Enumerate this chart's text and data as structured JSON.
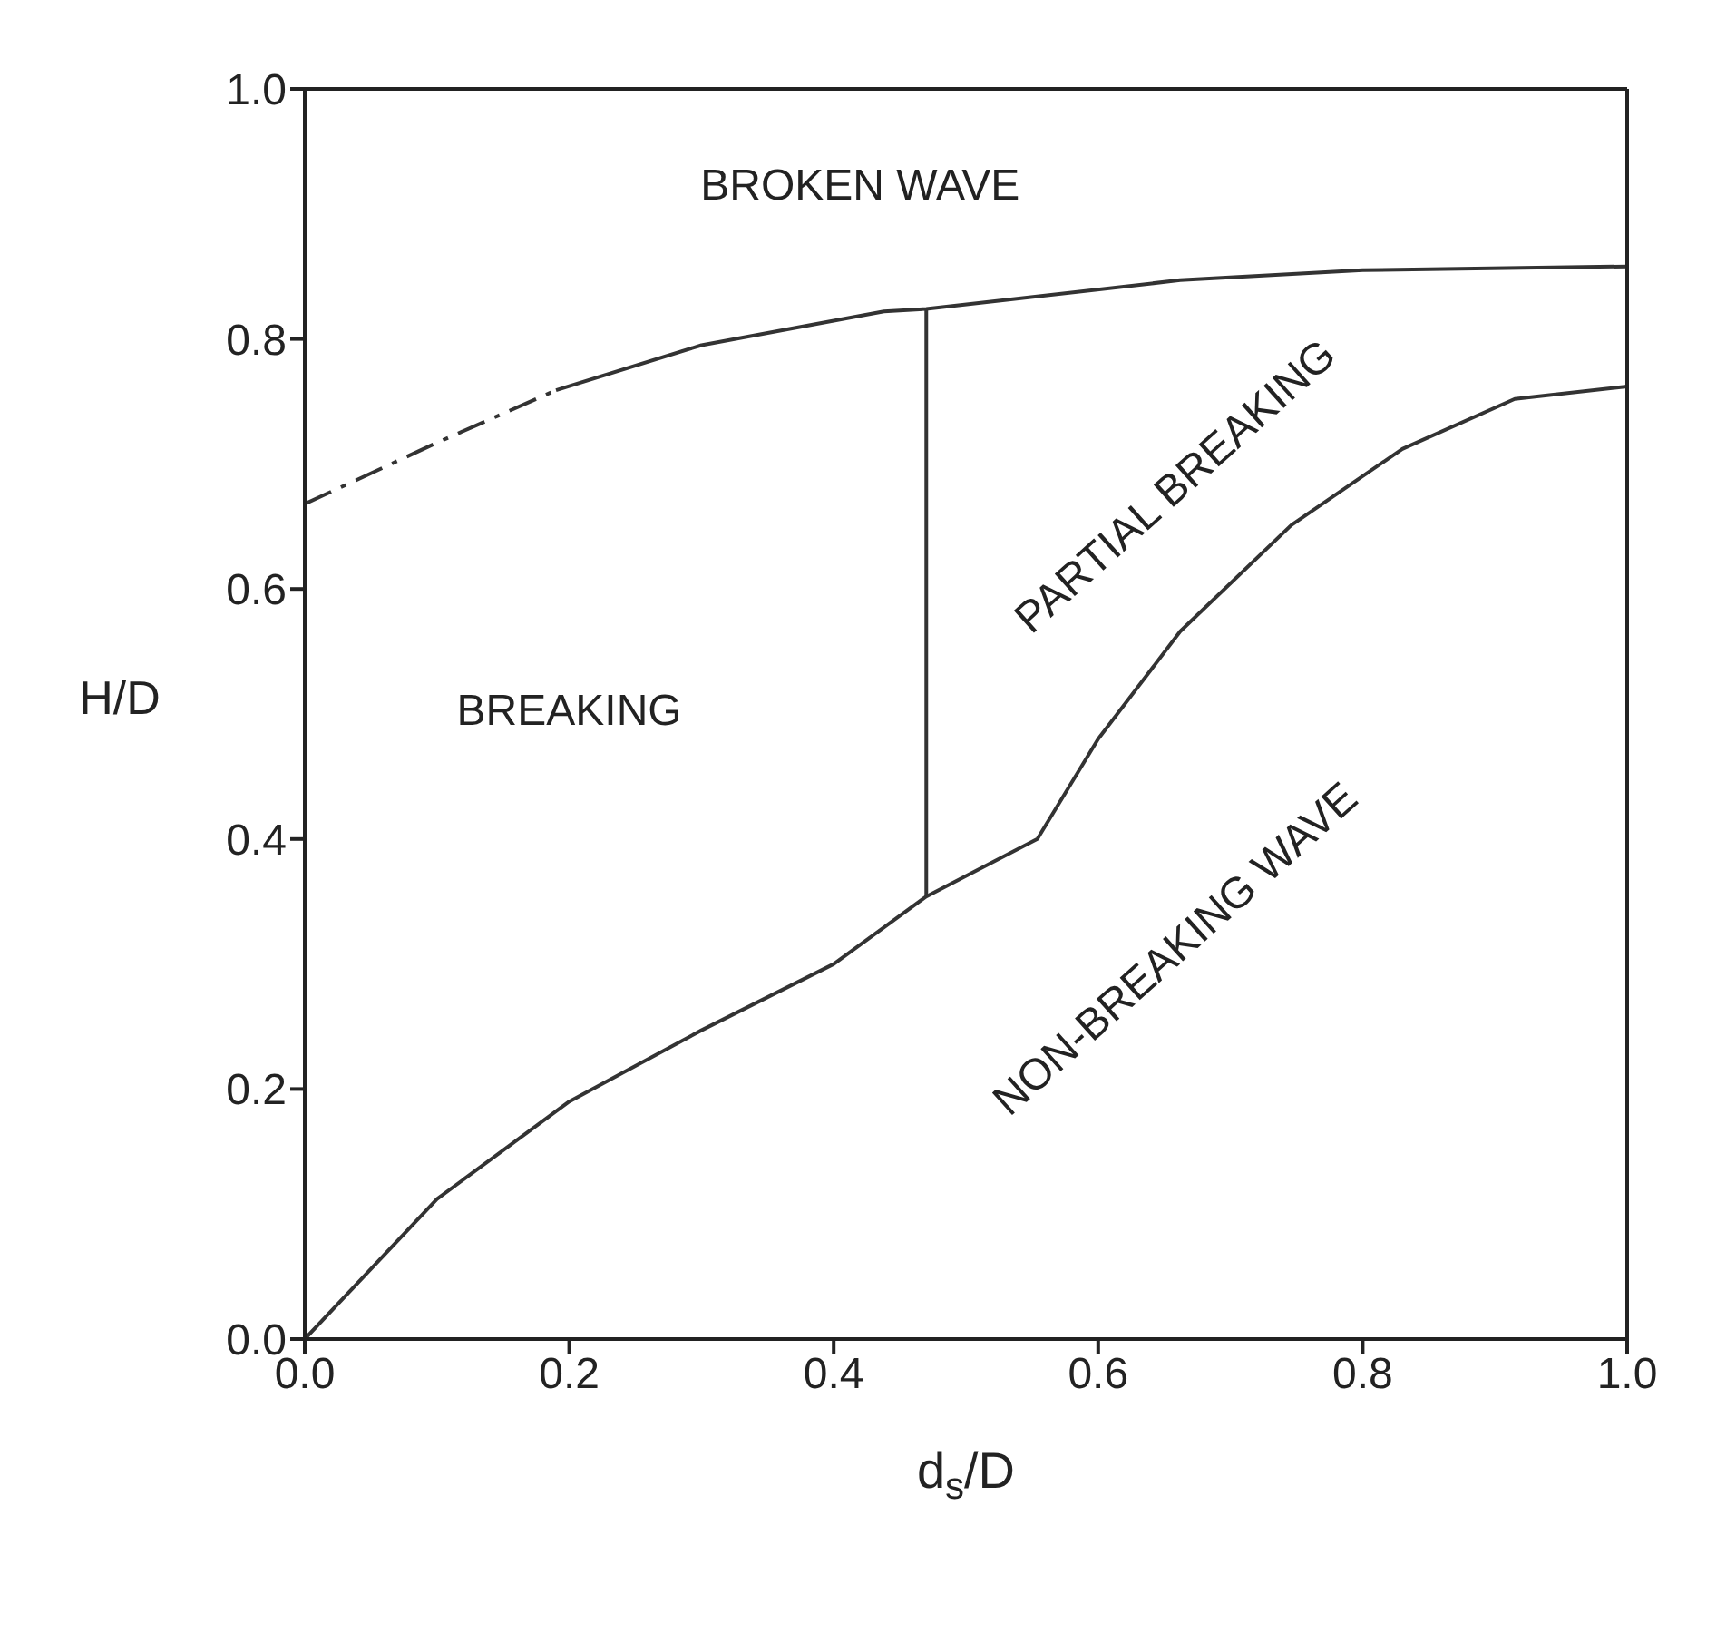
{
  "chart_data": {
    "type": "line",
    "xlabel": "d$_{s}$/D",
    "ylabel": "H/D",
    "xlim": [
      0,
      1
    ],
    "ylim": [
      0,
      1
    ],
    "xticks": [
      {
        "value": 0,
        "label": "0.0"
      },
      {
        "value": 0.2,
        "label": "0.2"
      },
      {
        "value": 0.4,
        "label": "0.4"
      },
      {
        "value": 0.6,
        "label": "0.6"
      },
      {
        "value": 0.8,
        "label": "0.8"
      },
      {
        "value": 1,
        "label": "1.0"
      }
    ],
    "yticks": [
      {
        "value": 0,
        "label": "0.0"
      },
      {
        "value": 0.2,
        "label": "0.2"
      },
      {
        "value": 0.4,
        "label": "0.4"
      },
      {
        "value": 0.6,
        "label": "0.6"
      },
      {
        "value": 0.8,
        "label": "0.8"
      },
      {
        "value": 1,
        "label": "1.0"
      }
    ],
    "marker": "none",
    "series": [
      {
        "color": "#333333",
        "line_style": "dashed",
        "x": [
          0,
          0.1,
          0.19
        ],
        "values": [
          0.668,
          0.717,
          0.759
        ]
      },
      {
        "color": "#333333",
        "line_style": "solid",
        "x": [
          0.19,
          0.3,
          0.438,
          0.47,
          0.662,
          0.8,
          1.0
        ],
        "values": [
          0.759,
          0.795,
          0.822,
          0.824,
          0.847,
          0.855,
          0.858
        ]
      },
      {
        "color": "#333333",
        "line_style": "solid",
        "x": [
          0.47,
          0.47
        ],
        "values": [
          0.354,
          0.824
        ]
      },
      {
        "color": "#333333",
        "line_style": "solid",
        "x": [
          0,
          0.1,
          0.2,
          0.3,
          0.4,
          0.47,
          0.554,
          0.6,
          0.662,
          0.746,
          0.83,
          0.915,
          1.0
        ],
        "values": [
          0,
          0.112,
          0.19,
          0.247,
          0.3,
          0.354,
          0.4,
          0.48,
          0.566,
          0.651,
          0.712,
          0.752,
          0.762
        ]
      }
    ],
    "annotations": [
      "BROKEN WAVE",
      "BREAKING",
      "PARTIAL BREAKING",
      "NON-BREAKING WAVE"
    ]
  }
}
